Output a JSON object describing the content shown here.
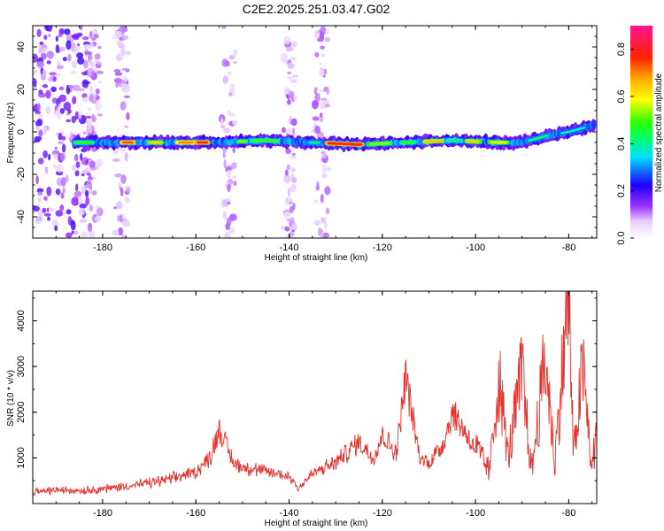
{
  "chart_data": [
    {
      "type": "heatmap",
      "title": "C2E2.2025.251.03.47.G02",
      "xlabel": "Height of straight line (km)",
      "ylabel": "Frequency (Hz)",
      "xlim": [
        -195,
        -74
      ],
      "ylim": [
        -50,
        50
      ],
      "xticks": [
        -180,
        -160,
        -140,
        -120,
        -100,
        -80
      ],
      "yticks": [
        -40,
        -20,
        0,
        20,
        40
      ],
      "colorbar": {
        "label": "Normalized spectral amplitude",
        "range": [
          0,
          0.9
        ],
        "ticks": [
          "0.0",
          "0.2",
          "0.4",
          "0.6",
          "0.8"
        ],
        "colors": [
          "#ffffff",
          "#9b30ff",
          "#0000ff",
          "#00ffff",
          "#00ff00",
          "#ffff00",
          "#ff8800",
          "#ff0000",
          "#ff1493"
        ]
      },
      "ridge": {
        "description_x": [
          -185,
          -175,
          -165,
          -155,
          -145,
          -135,
          -125,
          -115,
          -105,
          -95,
          -90,
          -85,
          -80,
          -75
        ],
        "frequency_hz": [
          -5,
          -5,
          -5,
          -5,
          -4,
          -5,
          -6,
          -5,
          -4,
          -5,
          -5,
          -2,
          0,
          3
        ]
      },
      "interference_columns_km": [
        -182,
        -176,
        -153,
        -140,
        -133
      ]
    },
    {
      "type": "line",
      "xlabel": "Height of straight line (km)",
      "ylabel": "SNR (10 * v/v)",
      "xlim": [
        -195,
        -74
      ],
      "ylim": [
        0,
        4650
      ],
      "xticks": [
        -180,
        -160,
        -140,
        -120,
        -100,
        -80
      ],
      "yticks": [
        1000,
        2000,
        3000,
        4000
      ],
      "color": "#e8302b",
      "series": [
        {
          "name": "SNR",
          "x": [
            -195,
            -190,
            -185,
            -180,
            -175,
            -170,
            -165,
            -160,
            -157,
            -155,
            -152,
            -150,
            -145,
            -140,
            -138,
            -135,
            -130,
            -125,
            -122,
            -120,
            -117,
            -115,
            -112,
            -110,
            -107,
            -105,
            -103,
            -100,
            -97,
            -95,
            -93,
            -90,
            -88,
            -85,
            -83,
            -80,
            -79,
            -77,
            -75,
            -74
          ],
          "y": [
            250,
            300,
            280,
            320,
            380,
            450,
            550,
            700,
            1000,
            1650,
            900,
            800,
            700,
            600,
            350,
            650,
            900,
            1350,
            1000,
            1500,
            1100,
            2800,
            1000,
            900,
            1300,
            2000,
            1700,
            1200,
            700,
            2800,
            1000,
            2900,
            700,
            3200,
            900,
            4600,
            1000,
            3000,
            700,
            1700
          ]
        }
      ]
    }
  ]
}
